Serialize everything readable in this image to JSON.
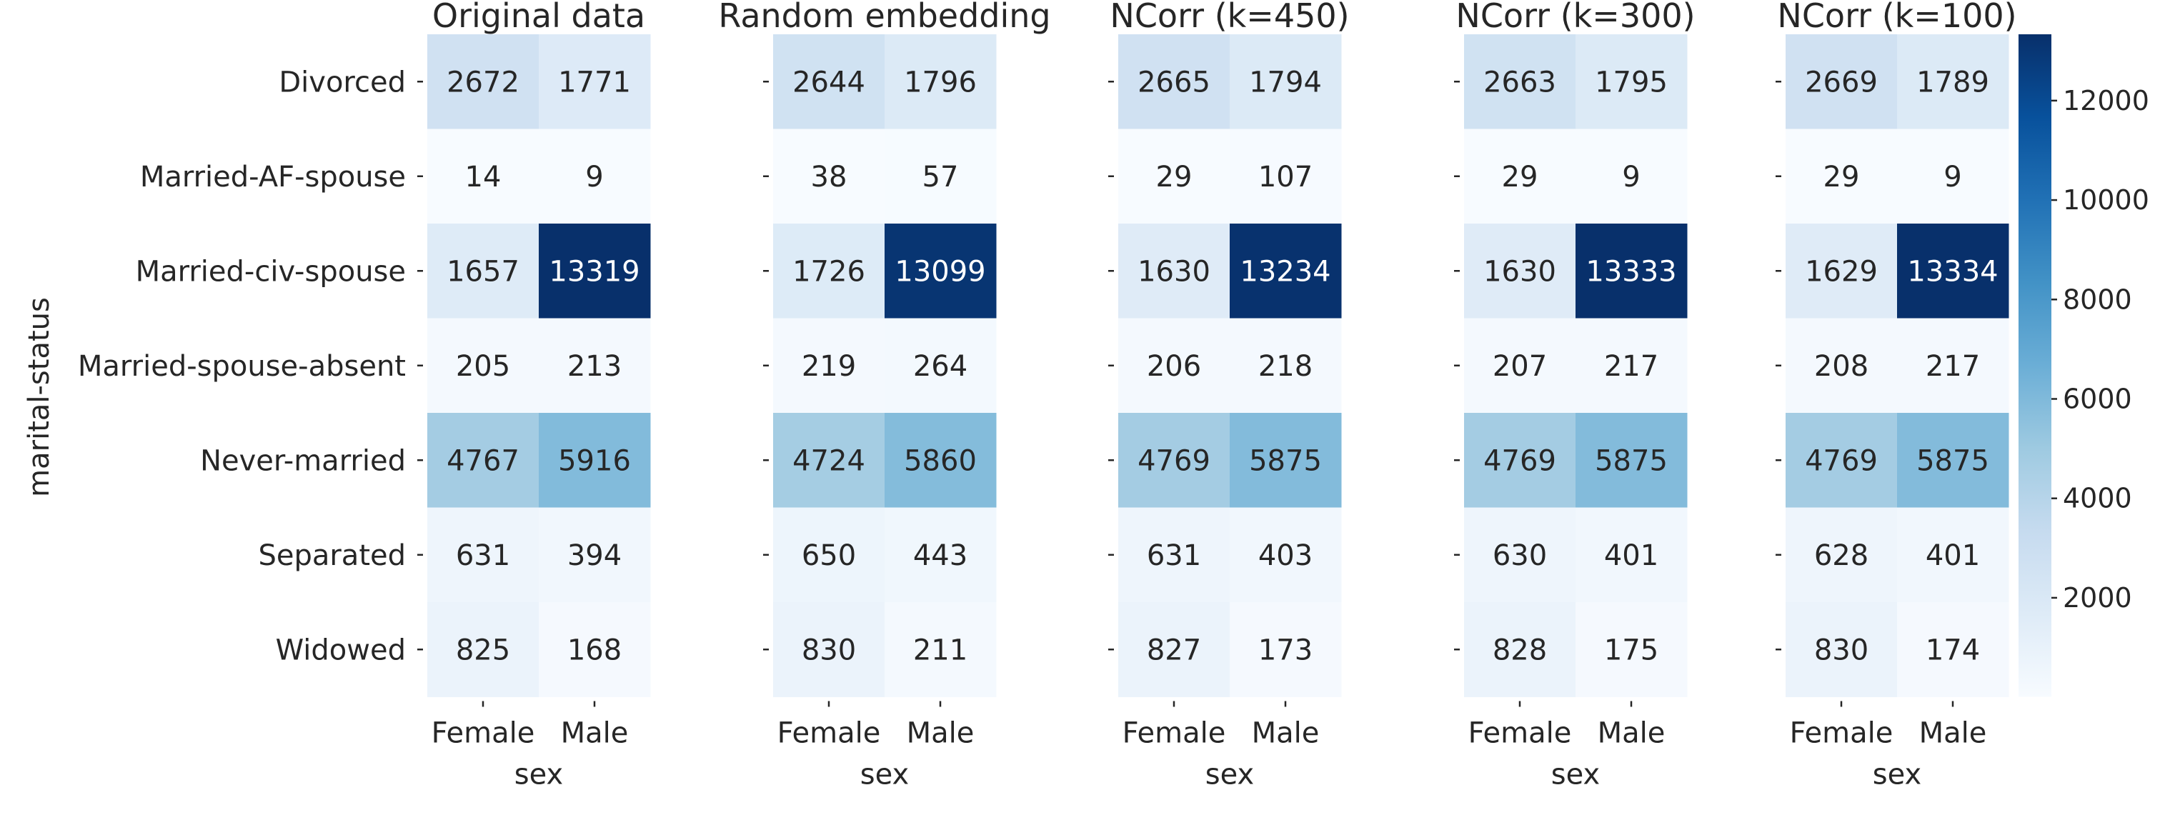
{
  "chart_data": {
    "type": "heatmap",
    "colormap": "Blues",
    "colormap_stops": [
      "#f7fbff",
      "#deebf7",
      "#c6dbef",
      "#9ecae1",
      "#6baed6",
      "#4292c6",
      "#2171b5",
      "#08519c",
      "#08306b"
    ],
    "vmin": 9,
    "vmax": 13334,
    "ylabel": "marital-status",
    "xlabel": "sex",
    "row_labels": [
      "Divorced",
      "Married-AF-spouse",
      "Married-civ-spouse",
      "Married-spouse-absent",
      "Never-married",
      "Separated",
      "Widowed"
    ],
    "col_labels": [
      "Female",
      "Male"
    ],
    "panels": [
      {
        "title": "Original data",
        "values": [
          [
            2672,
            1771
          ],
          [
            14,
            9
          ],
          [
            1657,
            13319
          ],
          [
            205,
            213
          ],
          [
            4767,
            5916
          ],
          [
            631,
            394
          ],
          [
            825,
            168
          ]
        ]
      },
      {
        "title": "Random embedding",
        "values": [
          [
            2644,
            1796
          ],
          [
            38,
            57
          ],
          [
            1726,
            13099
          ],
          [
            219,
            264
          ],
          [
            4724,
            5860
          ],
          [
            650,
            443
          ],
          [
            830,
            211
          ]
        ]
      },
      {
        "title": "NCorr (k=450)",
        "values": [
          [
            2665,
            1794
          ],
          [
            29,
            107
          ],
          [
            1630,
            13234
          ],
          [
            206,
            218
          ],
          [
            4769,
            5875
          ],
          [
            631,
            403
          ],
          [
            827,
            173
          ]
        ]
      },
      {
        "title": "NCorr (k=300)",
        "values": [
          [
            2663,
            1795
          ],
          [
            29,
            9
          ],
          [
            1630,
            13333
          ],
          [
            207,
            217
          ],
          [
            4769,
            5875
          ],
          [
            630,
            401
          ],
          [
            828,
            175
          ]
        ]
      },
      {
        "title": "NCorr (k=100)",
        "values": [
          [
            2669,
            1789
          ],
          [
            29,
            9
          ],
          [
            1629,
            13334
          ],
          [
            208,
            217
          ],
          [
            4769,
            5875
          ],
          [
            628,
            401
          ],
          [
            830,
            174
          ]
        ]
      }
    ],
    "colorbar_ticks": [
      2000,
      4000,
      6000,
      8000,
      10000,
      12000
    ]
  }
}
